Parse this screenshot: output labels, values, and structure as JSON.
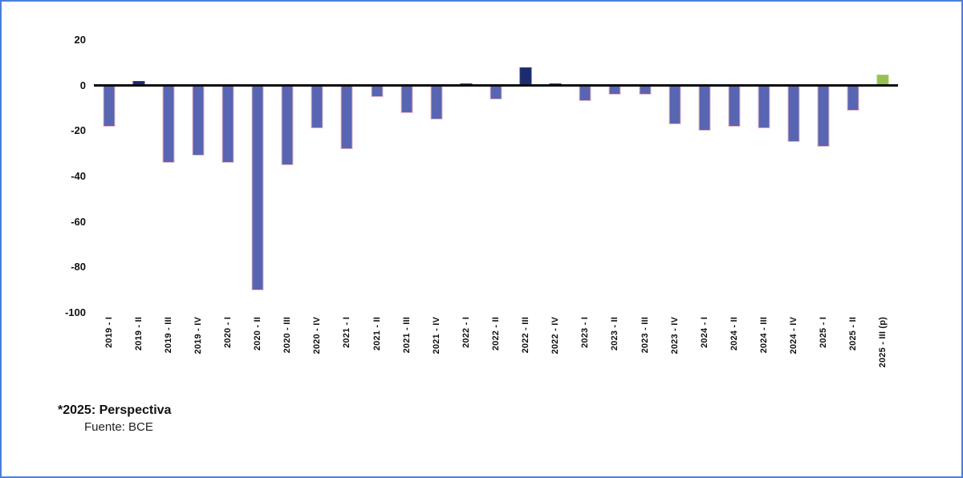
{
  "frame": {
    "border_color": "#4a80d9",
    "background": "#ffffff"
  },
  "chart_data": {
    "type": "bar",
    "title": "",
    "categories": [
      "2019 - I",
      "2019 - II",
      "2019 - III",
      "2019 - IV",
      "2020 - I",
      "2020 - II",
      "2020 - III",
      "2020 - IV",
      "2021 - I",
      "2021 - II",
      "2021 - III",
      "2021 - IV",
      "2022 - I",
      "2022 - II",
      "2022 - III",
      "2022 - IV",
      "2023 - I",
      "2023 - II",
      "2023 - III",
      "2023 - IV",
      "2024 - I",
      "2024 - II",
      "2024 - III",
      "2024 - IV",
      "2025 - I",
      "2025 - II",
      "2025 - III (p)"
    ],
    "values": [
      -18,
      2,
      -34,
      -31,
      -34,
      -90,
      -35,
      -19,
      -28,
      -5,
      -12,
      -15,
      1,
      -6,
      8,
      1,
      -7,
      -4,
      -4,
      -17,
      -20,
      -18,
      -19,
      -25,
      -27,
      -11,
      5
    ],
    "ylim": [
      -100,
      20
    ],
    "yticks": [
      20,
      0,
      -20,
      -40,
      -60,
      -80,
      -100
    ],
    "grid": false,
    "legend": null,
    "colors": {
      "negative": "#5865b2",
      "negative_border": "#e7bac6",
      "positive": "#1c2b6e",
      "forecast": "#97be52",
      "axis_line": "#0d0d0d"
    }
  },
  "footnote": {
    "line1": "*2025: Perspectiva",
    "line2": "Fuente: BCE"
  }
}
